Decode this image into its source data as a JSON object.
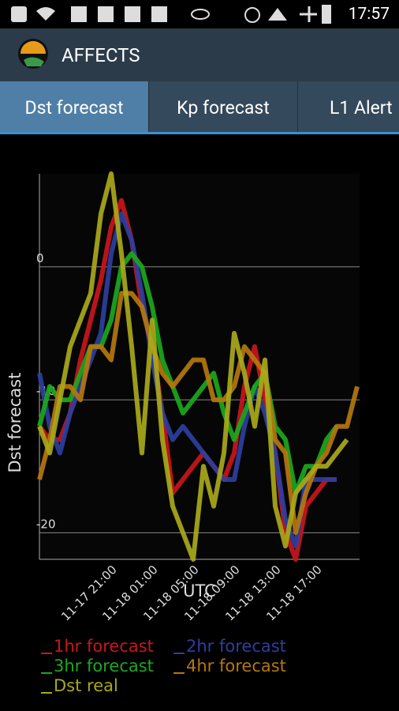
{
  "status_bar": {
    "time": "17:57"
  },
  "app_bar": {
    "title": "AFFECTS"
  },
  "tabs": [
    "Dst forecast",
    "Kp forecast",
    "L1 Alert"
  ],
  "chart_data": {
    "type": "line",
    "y_label": "Dst forecast",
    "x_label": "UTC",
    "categories": [
      null,
      null,
      null,
      null,
      null,
      null,
      null,
      "11-17 21:00",
      null,
      null,
      null,
      "11-18 01:00",
      null,
      null,
      null,
      "11-18 05:00",
      null,
      null,
      null,
      "11-18 09:00",
      null,
      null,
      null,
      "11-18 13:00",
      null,
      null,
      null,
      "11-18 17:00",
      null,
      null,
      null,
      null
    ],
    "ylim": [
      -22,
      7
    ],
    "yticks": [
      -20,
      -10,
      0
    ],
    "grid": true,
    "series": [
      {
        "name": "1hr forecast",
        "color": "#c8161c",
        "values": [
          -12,
          -13,
          -13,
          -11,
          -7,
          -4,
          -1,
          3,
          5,
          2,
          -3,
          -6,
          -11,
          -17,
          -16,
          -15,
          -14,
          -15,
          -16,
          -14,
          -9,
          -6,
          -10,
          -14,
          -20,
          -22,
          -18,
          -17,
          -16,
          -16,
          null,
          null
        ]
      },
      {
        "name": "2hr forecast",
        "color": "#2c3f9f",
        "values": [
          -8,
          -12,
          -14,
          -11,
          -9,
          -7,
          -5,
          1,
          4,
          2,
          -2,
          -7,
          -11,
          -13,
          -12,
          -13,
          -14,
          -15,
          -16,
          -16,
          -12,
          -9,
          -11,
          -14,
          -19,
          -21,
          -16,
          -16,
          -16,
          -16,
          null,
          null
        ]
      },
      {
        "name": "3hr forecast",
        "color": "#1ca81c",
        "values": [
          -12,
          -9,
          -10,
          -10,
          -8,
          -6,
          -6,
          -4,
          0,
          1,
          0,
          -3,
          -7,
          -9,
          -11,
          -10,
          -9,
          -8,
          -11,
          -13,
          -11,
          -9,
          -8,
          -12,
          -13,
          -17,
          -15,
          -15,
          -13,
          -12,
          null,
          null
        ]
      },
      {
        "name": "4hr forecast",
        "color": "#b5770f",
        "values": [
          -16,
          -13,
          -9,
          -9,
          -10,
          -6,
          -6,
          -7,
          -2,
          -2,
          -3,
          -6,
          -8,
          -9,
          -8,
          -7,
          -7,
          -10,
          -10,
          -9,
          -6,
          -7,
          -8,
          -13,
          -14,
          -20,
          -17,
          -15,
          -14,
          -12,
          -12,
          -9
        ]
      },
      {
        "name": "Dst real",
        "color": "#a9a91a",
        "values": [
          -12,
          -14,
          -10,
          -6,
          -4,
          -2,
          4,
          7,
          1,
          -6,
          -14,
          -4,
          -13,
          -18,
          -20,
          -22,
          -15,
          -18,
          -14,
          -5,
          -8,
          -12,
          -7,
          -18,
          -21,
          -17,
          -16,
          -15,
          -15,
          -14,
          -13,
          null
        ]
      }
    ]
  }
}
